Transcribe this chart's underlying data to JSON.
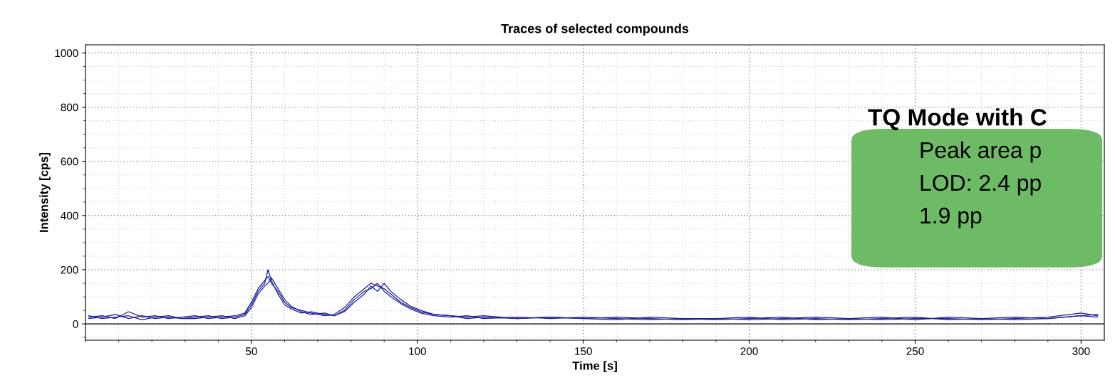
{
  "chart_data": {
    "type": "line",
    "title": "Traces of selected compounds",
    "xlabel": "Time [s]",
    "ylabel": "Intensity [cps]",
    "x": [
      1,
      5,
      9,
      13,
      17,
      21,
      25,
      29,
      33,
      37,
      41,
      45,
      48,
      50,
      52,
      54,
      55,
      56,
      58,
      60,
      62,
      65,
      68,
      72,
      75,
      78,
      81,
      84,
      86,
      88,
      90,
      92,
      95,
      98,
      101,
      105,
      110,
      115,
      120,
      130,
      140,
      150,
      160,
      170,
      180,
      190,
      200,
      210,
      220,
      230,
      240,
      250,
      260,
      270,
      280,
      290,
      300,
      305
    ],
    "series": [
      {
        "color": "#1c1c96",
        "values": [
          25,
          30,
          20,
          45,
          25,
          30,
          20,
          25,
          30,
          20,
          25,
          30,
          40,
          80,
          130,
          160,
          175,
          150,
          120,
          80,
          60,
          50,
          40,
          30,
          35,
          60,
          100,
          130,
          150,
          140,
          130,
          110,
          80,
          60,
          45,
          35,
          30,
          25,
          30,
          20,
          25,
          20,
          25,
          20,
          15,
          20,
          25,
          15,
          20,
          15,
          20,
          25,
          15,
          20,
          25,
          20,
          30,
          25
        ]
      },
      {
        "color": "#1c1c96",
        "values": [
          20,
          25,
          35,
          20,
          30,
          20,
          25,
          20,
          25,
          30,
          20,
          25,
          35,
          70,
          120,
          150,
          200,
          160,
          110,
          70,
          55,
          40,
          45,
          35,
          30,
          50,
          90,
          120,
          130,
          150,
          120,
          100,
          75,
          55,
          40,
          30,
          25,
          30,
          20,
          25,
          20,
          25,
          20,
          15,
          20,
          15,
          20,
          25,
          15,
          20,
          15,
          20,
          20,
          15,
          20,
          25,
          40,
          30
        ]
      },
      {
        "color": "#1c1c96",
        "values": [
          30,
          20,
          25,
          30,
          15,
          25,
          30,
          20,
          20,
          25,
          30,
          20,
          30,
          60,
          110,
          140,
          150,
          170,
          130,
          90,
          65,
          45,
          35,
          40,
          30,
          45,
          80,
          110,
          140,
          120,
          150,
          120,
          90,
          65,
          50,
          35,
          30,
          20,
          25,
          20,
          25,
          20,
          15,
          25,
          20,
          20,
          15,
          20,
          25,
          20,
          25,
          15,
          25,
          20,
          15,
          20,
          30,
          35
        ]
      }
    ],
    "xlim": [
      0,
      307
    ],
    "ylim": [
      -60,
      1030
    ],
    "xticks": [
      50,
      100,
      150,
      200,
      250,
      300
    ],
    "yticks": [
      0,
      200,
      400,
      600,
      800,
      1000
    ],
    "grid": true,
    "line_style": "solid",
    "marker": "none",
    "ref_lines": [
      {
        "axis": "y",
        "value": 0,
        "color": "#000000"
      }
    ],
    "annotations": [
      "TQ Mode with C",
      "Peak area p",
      "LOD: 2.4 pp",
      "1.9 pp"
    ]
  }
}
